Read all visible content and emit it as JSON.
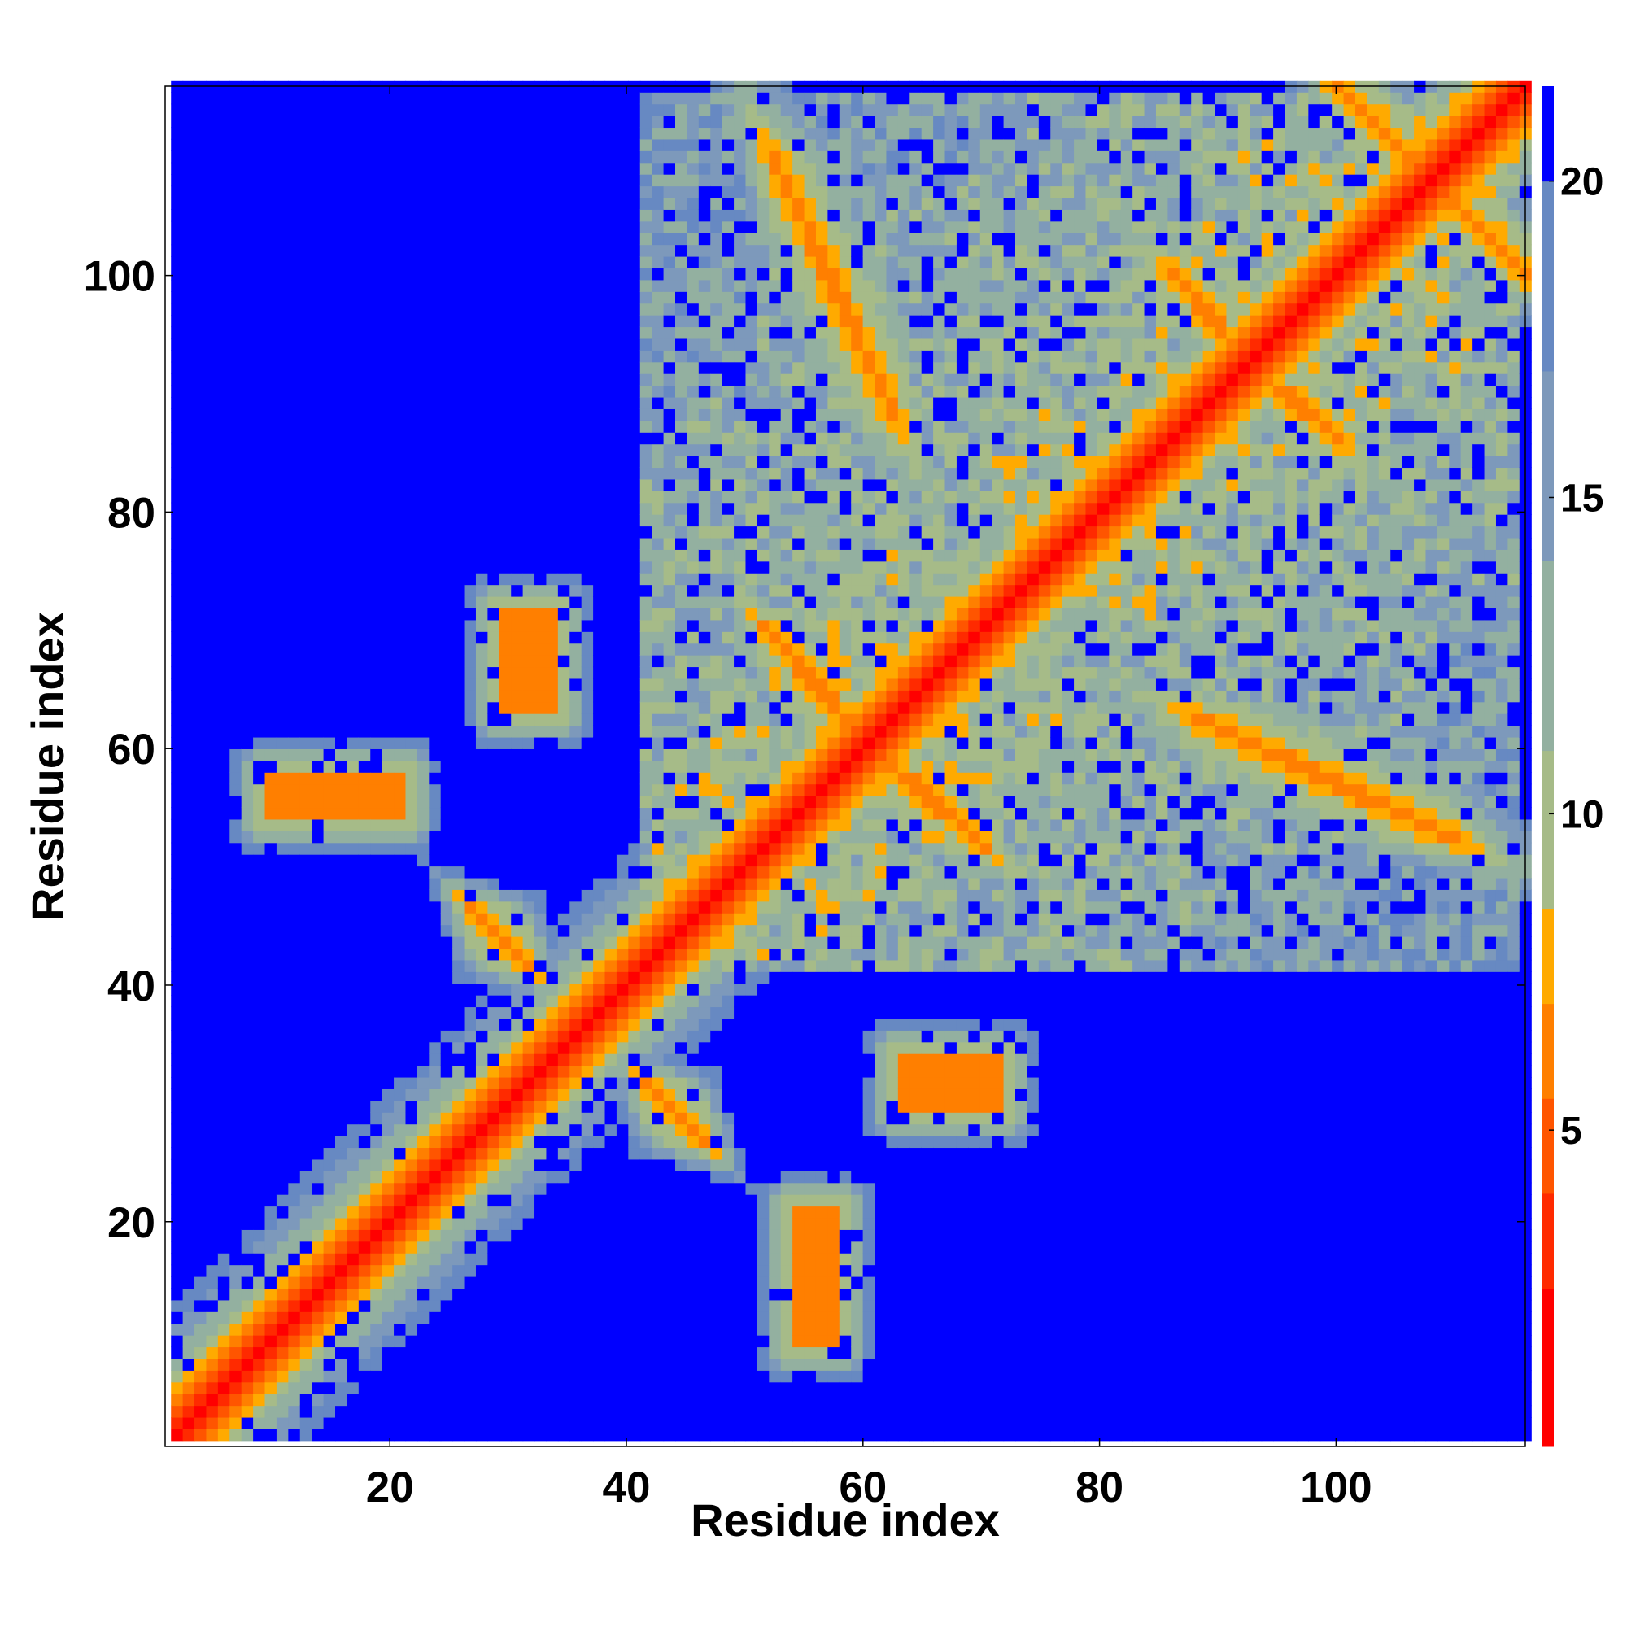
{
  "chart_data": {
    "type": "heatmap",
    "title": "",
    "xlabel": "Residue index",
    "ylabel": "Residue index",
    "n_residues": 116,
    "xlim": [
      1,
      116
    ],
    "ylim": [
      1,
      116
    ],
    "x_ticks": [
      20,
      40,
      60,
      80,
      100
    ],
    "y_ticks": [
      20,
      40,
      60,
      80,
      100
    ],
    "colorbar": {
      "ticks": [
        5,
        10,
        15,
        20
      ],
      "range": [
        0,
        21.5
      ],
      "colors": [
        {
          "max": 2.5,
          "color": "#ff0000"
        },
        {
          "max": 4.0,
          "color": "#ff2a00"
        },
        {
          "max": 5.5,
          "color": "#ff5500"
        },
        {
          "max": 7.0,
          "color": "#ff7f00"
        },
        {
          "max": 8.5,
          "color": "#ffaa00"
        },
        {
          "max": 11.0,
          "color": "#a6bb88"
        },
        {
          "max": 14.0,
          "color": "#93b0a0"
        },
        {
          "max": 17.0,
          "color": "#7d99bb"
        },
        {
          "max": 20.0,
          "color": "#6789c2"
        },
        {
          "max": 21.5,
          "color": "#0000ff"
        }
      ]
    },
    "grid": false,
    "legend": "none",
    "background_value_color": "#0000ff",
    "contact_regions": [
      {
        "x": [
          1,
          116
        ],
        "y": [
          1,
          116
        ],
        "kind": "diagonal",
        "min_distance": 1.5
      },
      {
        "x": [
          52,
          62
        ],
        "y": [
          88,
          110
        ],
        "kind": "antidiagonal",
        "min_distance": 6
      },
      {
        "x": [
          100,
          116
        ],
        "y": [
          100,
          116
        ],
        "kind": "antidiagonal",
        "min_distance": 6
      },
      {
        "x": [
          86,
          98
        ],
        "y": [
          86,
          100
        ],
        "kind": "antidiagonal",
        "min_distance": 6
      },
      {
        "x": [
          51,
          60
        ],
        "y": [
          60,
          70
        ],
        "kind": "antidiagonal",
        "min_distance": 6
      },
      {
        "x": [
          60,
          68
        ],
        "y": [
          51,
          60
        ],
        "kind": "antidiagonal",
        "min_distance": 6
      },
      {
        "x": [
          95,
          110
        ],
        "y": [
          50,
          62
        ],
        "kind": "antidiagonal",
        "min_distance": 6
      },
      {
        "x": [
          26,
          31
        ],
        "y": [
          41,
          46
        ],
        "kind": "antidiagonal",
        "min_distance": 6
      },
      {
        "x": [
          41,
          46
        ],
        "y": [
          26,
          31
        ],
        "kind": "antidiagonal",
        "min_distance": 6
      },
      {
        "x": [
          29,
          33
        ],
        "y": [
          63,
          71
        ],
        "kind": "patch",
        "min_distance": 7
      },
      {
        "x": [
          64,
          72
        ],
        "y": [
          29,
          33
        ],
        "kind": "patch",
        "min_distance": 7
      },
      {
        "x": [
          54,
          57
        ],
        "y": [
          9,
          20
        ],
        "kind": "patch",
        "min_distance": 7
      },
      {
        "x": [
          9,
          20
        ],
        "y": [
          54,
          57
        ],
        "kind": "patch",
        "min_distance": 7
      }
    ]
  }
}
